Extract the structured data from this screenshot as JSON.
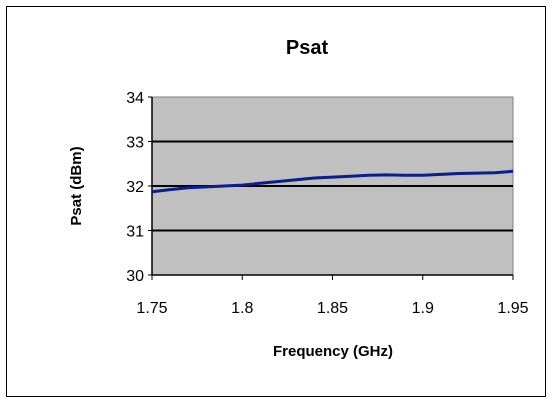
{
  "chart_data": {
    "type": "line",
    "title": "Psat",
    "xlabel": "Frequency (GHz)",
    "ylabel": "Psat (dBm)",
    "xlim": [
      1.75,
      1.95
    ],
    "ylim": [
      30,
      34
    ],
    "xticks": [
      "1.75",
      "1.8",
      "1.85",
      "1.9",
      "1.95"
    ],
    "yticks": [
      "30",
      "31",
      "32",
      "33",
      "34"
    ],
    "grid": true,
    "legend": "none",
    "plot_bg_color": "#c0c0c0",
    "line_color": "#0b1e8c",
    "series": [
      {
        "x": [
          1.75,
          1.76,
          1.77,
          1.78,
          1.79,
          1.8,
          1.81,
          1.82,
          1.83,
          1.84,
          1.85,
          1.86,
          1.87,
          1.88,
          1.89,
          1.9,
          1.91,
          1.92,
          1.93,
          1.94,
          1.95
        ],
        "values": [
          31.87,
          31.92,
          31.96,
          31.98,
          32.0,
          32.02,
          32.06,
          32.1,
          32.14,
          32.18,
          32.2,
          32.22,
          32.24,
          32.25,
          32.24,
          32.24,
          32.26,
          32.28,
          32.29,
          32.3,
          32.33
        ]
      }
    ]
  }
}
